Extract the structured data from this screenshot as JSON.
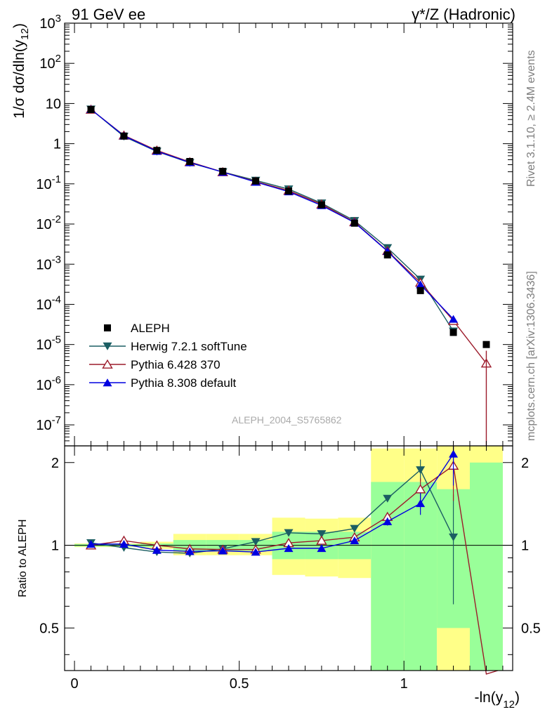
{
  "header": {
    "left": "91 GeV ee",
    "right": "γ*/Z (Hadronic)"
  },
  "side_labels": {
    "rivet": "Rivet 3.1.10, ≥ 2.4M events",
    "mcplots": "mcplots.cern.ch [arXiv:1306.3436]"
  },
  "watermark": "ALEPH_2004_S5765862",
  "colors": {
    "data": "#000000",
    "herwig": "#1b5e63",
    "pythia6": "#9c1b2b",
    "pythia8": "#0000e0",
    "band_inner": "#99ff99",
    "band_outer": "#ffff88"
  },
  "chart_data": [
    {
      "type": "line",
      "ylabel": "1/σ dσ/dln(y12)",
      "yscale": "log",
      "xlim": [
        -0.03,
        1.33
      ],
      "ylim": [
        3e-08,
        1000
      ],
      "yticklabels": [
        "10^3",
        "10^2",
        "10",
        "1",
        "10^-1",
        "10^-2",
        "10^-3",
        "10^-4",
        "10^-5",
        "10^-6",
        "10^-7"
      ],
      "legend_position": "lower-left",
      "x": [
        0.05,
        0.15,
        0.25,
        0.35,
        0.45,
        0.55,
        0.65,
        0.75,
        0.85,
        0.95,
        1.05,
        1.15,
        1.25
      ],
      "series": [
        {
          "name": "ALEPH",
          "key": "data",
          "marker": "square",
          "values": [
            7.1,
            1.55,
            0.68,
            0.36,
            0.205,
            0.118,
            0.066,
            0.03,
            0.0105,
            0.0017,
            0.00022,
            2e-05,
            1e-05
          ]
        },
        {
          "name": "Herwig 7.2.1 softTune",
          "key": "herwig",
          "marker": "triangle-down",
          "values": [
            7.2,
            1.51,
            0.64,
            0.335,
            0.197,
            0.122,
            0.074,
            0.033,
            0.0121,
            0.00255,
            0.00042,
            2.15e-05,
            null
          ]
        },
        {
          "name": "Pythia 6.428 370",
          "key": "pythia6",
          "marker": "triangle-up-open",
          "values": [
            7.1,
            1.61,
            0.68,
            0.35,
            0.197,
            0.114,
            0.068,
            0.031,
            0.0112,
            0.00215,
            0.00035,
            3.9e-05,
            3.4e-06
          ]
        },
        {
          "name": "Pythia 8.308 default",
          "key": "pythia8",
          "marker": "triangle-up",
          "values": [
            7.15,
            1.57,
            0.65,
            0.34,
            0.196,
            0.111,
            0.064,
            0.029,
            0.0109,
            0.0021,
            0.00031,
            4.3e-05,
            null
          ]
        }
      ]
    },
    {
      "type": "line",
      "xlabel": "-ln(y12)",
      "ylabel": "Ratio to ALEPH",
      "yscale": "log",
      "ylim": [
        0.35,
        2.3
      ],
      "yticks": [
        0.5,
        1,
        2
      ],
      "xticks": [
        0,
        0.5,
        1
      ],
      "reference_line": 1,
      "bands": [
        {
          "x": [
            0.0,
            0.1
          ],
          "inner": [
            0.99,
            1.01
          ],
          "outer": [
            0.985,
            1.015
          ]
        },
        {
          "x": [
            0.1,
            0.2
          ],
          "inner": [
            0.99,
            1.01
          ],
          "outer": [
            0.985,
            1.015
          ]
        },
        {
          "x": [
            0.2,
            0.3
          ],
          "inner": [
            0.985,
            1.015
          ],
          "outer": [
            0.97,
            1.03
          ]
        },
        {
          "x": [
            0.3,
            0.4
          ],
          "inner": [
            0.955,
            1.045
          ],
          "outer": [
            0.92,
            1.1
          ]
        },
        {
          "x": [
            0.4,
            0.5
          ],
          "inner": [
            0.955,
            1.045
          ],
          "outer": [
            0.92,
            1.1
          ]
        },
        {
          "x": [
            0.5,
            0.6
          ],
          "inner": [
            0.955,
            1.045
          ],
          "outer": [
            0.92,
            1.1
          ]
        },
        {
          "x": [
            0.6,
            0.7
          ],
          "inner": [
            0.89,
            1.12
          ],
          "outer": [
            0.78,
            1.26
          ]
        },
        {
          "x": [
            0.7,
            0.8
          ],
          "inner": [
            0.89,
            1.12
          ],
          "outer": [
            0.77,
            1.25
          ]
        },
        {
          "x": [
            0.8,
            0.9
          ],
          "inner": [
            0.89,
            1.12
          ],
          "outer": [
            0.76,
            1.26
          ]
        },
        {
          "x": [
            0.9,
            1.0
          ],
          "inner": [
            0.35,
            1.7
          ],
          "outer": [
            0.35,
            2.25
          ]
        },
        {
          "x": [
            1.0,
            1.1
          ],
          "inner": [
            0.35,
            1.7
          ],
          "outer": [
            0.35,
            2.25
          ]
        },
        {
          "x": [
            1.1,
            1.2
          ],
          "inner": [
            0.5,
            1.6
          ],
          "outer": [
            0.35,
            2.3
          ]
        },
        {
          "x": [
            1.2,
            1.3
          ],
          "inner": [
            0.35,
            2.0
          ],
          "outer": [
            0.35,
            2.3
          ]
        }
      ],
      "series": [
        {
          "name": "Herwig 7.2.1 softTune",
          "key": "herwig",
          "marker": "triangle-down",
          "values": [
            1.02,
            0.98,
            0.945,
            0.935,
            0.97,
            1.03,
            1.11,
            1.1,
            1.15,
            1.48,
            1.88,
            1.07,
            null
          ],
          "err": [
            0,
            0,
            0,
            0,
            0,
            0,
            0,
            0,
            0,
            0.04,
            0.17,
            0.46,
            0
          ]
        },
        {
          "name": "Pythia 6.428 370",
          "key": "pythia6",
          "marker": "triangle-up-open",
          "values": [
            1.0,
            1.04,
            1.0,
            0.97,
            0.965,
            0.965,
            1.02,
            1.04,
            1.07,
            1.27,
            1.6,
            1.95,
            0.34
          ],
          "err": [
            0,
            0,
            0,
            0,
            0,
            0,
            0,
            0,
            0,
            0.04,
            0.15,
            0.5,
            0
          ]
        },
        {
          "name": "Pythia 8.308 default",
          "key": "pythia8",
          "marker": "triangle-up",
          "values": [
            1.01,
            1.01,
            0.96,
            0.95,
            0.955,
            0.945,
            0.975,
            0.975,
            1.04,
            1.22,
            1.42,
            2.15,
            null
          ],
          "err": [
            0,
            0,
            0,
            0,
            0,
            0,
            0,
            0,
            0,
            0.04,
            0.13,
            0.5,
            0
          ]
        }
      ]
    }
  ]
}
